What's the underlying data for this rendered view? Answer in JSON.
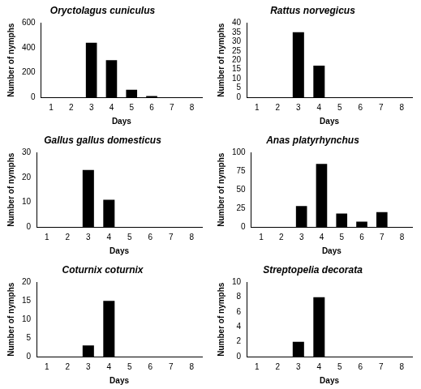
{
  "chart_data": [
    {
      "type": "bar",
      "title": "Oryctolagus cuniculus",
      "x_label": "Days",
      "y_label": "Number of nymphs",
      "categories": [
        "1",
        "2",
        "3",
        "4",
        "5",
        "6",
        "7",
        "8"
      ],
      "values": [
        0,
        0,
        440,
        300,
        60,
        10,
        0,
        0
      ],
      "color": "#000000",
      "ylim": [
        0,
        600
      ],
      "yticks": [
        0,
        200,
        400,
        600
      ],
      "grid": false
    },
    {
      "type": "bar",
      "title": "Rattus norvegicus",
      "x_label": "Days",
      "y_label": "Number of nymphs",
      "categories": [
        "1",
        "2",
        "3",
        "4",
        "5",
        "6",
        "7",
        "8"
      ],
      "values": [
        0,
        0,
        35,
        17,
        0,
        0,
        0,
        0
      ],
      "color": "#000000",
      "ylim": [
        0,
        40
      ],
      "yticks": [
        0,
        5,
        10,
        15,
        20,
        25,
        30,
        35,
        40
      ],
      "grid": false
    },
    {
      "type": "bar",
      "title": "Gallus gallus domesticus",
      "x_label": "Days",
      "y_label": "Number of nymphs",
      "categories": [
        "1",
        "2",
        "3",
        "4",
        "5",
        "6",
        "7",
        "8"
      ],
      "values": [
        0,
        0,
        23,
        11,
        0,
        0,
        0,
        0
      ],
      "color": "#000000",
      "ylim": [
        0,
        30
      ],
      "yticks": [
        0,
        10,
        20,
        30
      ],
      "grid": false
    },
    {
      "type": "bar",
      "title": "Anas platyrhynchus",
      "x_label": "Days",
      "y_label": "Number of nymphs",
      "categories": [
        "1",
        "2",
        "3",
        "4",
        "5",
        "6",
        "7",
        "8"
      ],
      "values": [
        0,
        0,
        28,
        85,
        18,
        7,
        20,
        0
      ],
      "color": "#000000",
      "ylim": [
        0,
        100
      ],
      "yticks": [
        0,
        25,
        50,
        75,
        100
      ],
      "grid": false
    },
    {
      "type": "bar",
      "title": "Coturnix coturnix",
      "x_label": "Days",
      "y_label": "Number of nymphs",
      "categories": [
        "1",
        "2",
        "3",
        "4",
        "5",
        "6",
        "7",
        "8"
      ],
      "values": [
        0,
        0,
        3,
        15,
        0,
        0,
        0,
        0
      ],
      "color": "#000000",
      "ylim": [
        0,
        20
      ],
      "yticks": [
        0,
        5,
        10,
        15,
        20
      ],
      "grid": false
    },
    {
      "type": "bar",
      "title": "Streptopelia decorata",
      "x_label": "Days",
      "y_label": "Number of nymphs",
      "categories": [
        "1",
        "2",
        "3",
        "4",
        "5",
        "6",
        "7",
        "8"
      ],
      "values": [
        0,
        0,
        2,
        8,
        0,
        0,
        0,
        0
      ],
      "color": "#000000",
      "ylim": [
        0,
        10
      ],
      "yticks": [
        0,
        2,
        4,
        6,
        8,
        10
      ],
      "grid": false
    }
  ]
}
